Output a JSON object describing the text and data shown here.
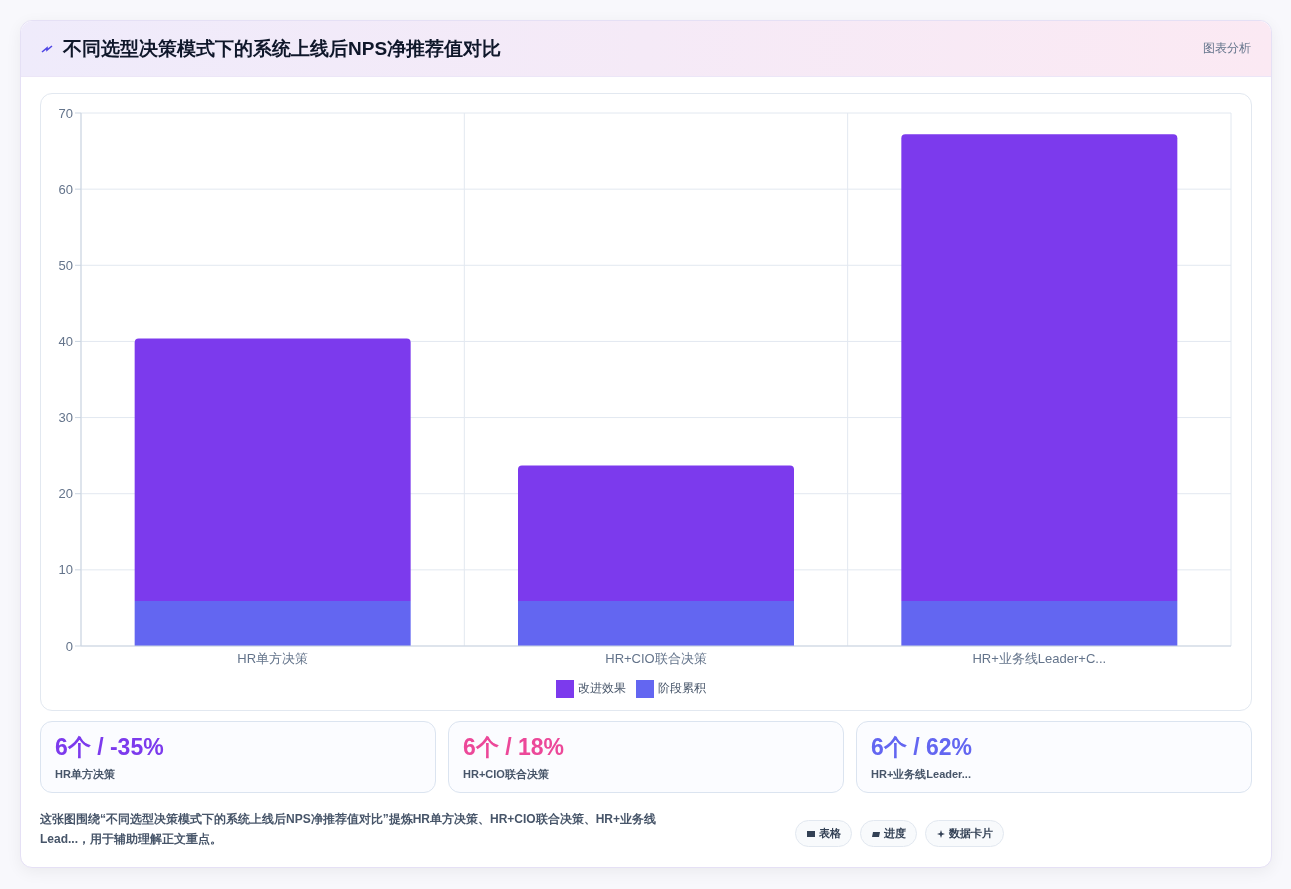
{
  "chart_data": {
    "type": "bar",
    "title": "不同选型决策模式下的系统上线后NPS净推荐值对比",
    "categories": [
      "HR单方决策",
      "HR+CIO联合决策",
      "HR+业务线Leader+C..."
    ],
    "series": [
      {
        "name": "阶段累积",
        "color": "#6366f1",
        "values": [
          5.9,
          5.9,
          5.9
        ]
      },
      {
        "name": "改进效果",
        "color": "#7c3aed",
        "values": [
          34.5,
          17.8,
          61.3
        ]
      }
    ],
    "stacked": true,
    "ylim": [
      0,
      70
    ],
    "yticks": [
      0,
      10,
      20,
      30,
      40,
      50,
      60,
      70
    ],
    "grid": true,
    "legend": "bottom",
    "annotations": [
      "图表分析",
      "6个 / -35%",
      "HR单方决策",
      "6个 / 18%",
      "HR+CIO联合决策",
      "6个 / 62%",
      "HR+业务线Leader...",
      "这张图围绕“不同选型决策模式下的系统上线后NPS净推荐值对比”提炼HR单方决策、HR+CIO联合决策、HR+业务线Lead...，用于辅助理解正文重点。",
      "表格",
      "进度",
      "数据卡片"
    ]
  }
}
